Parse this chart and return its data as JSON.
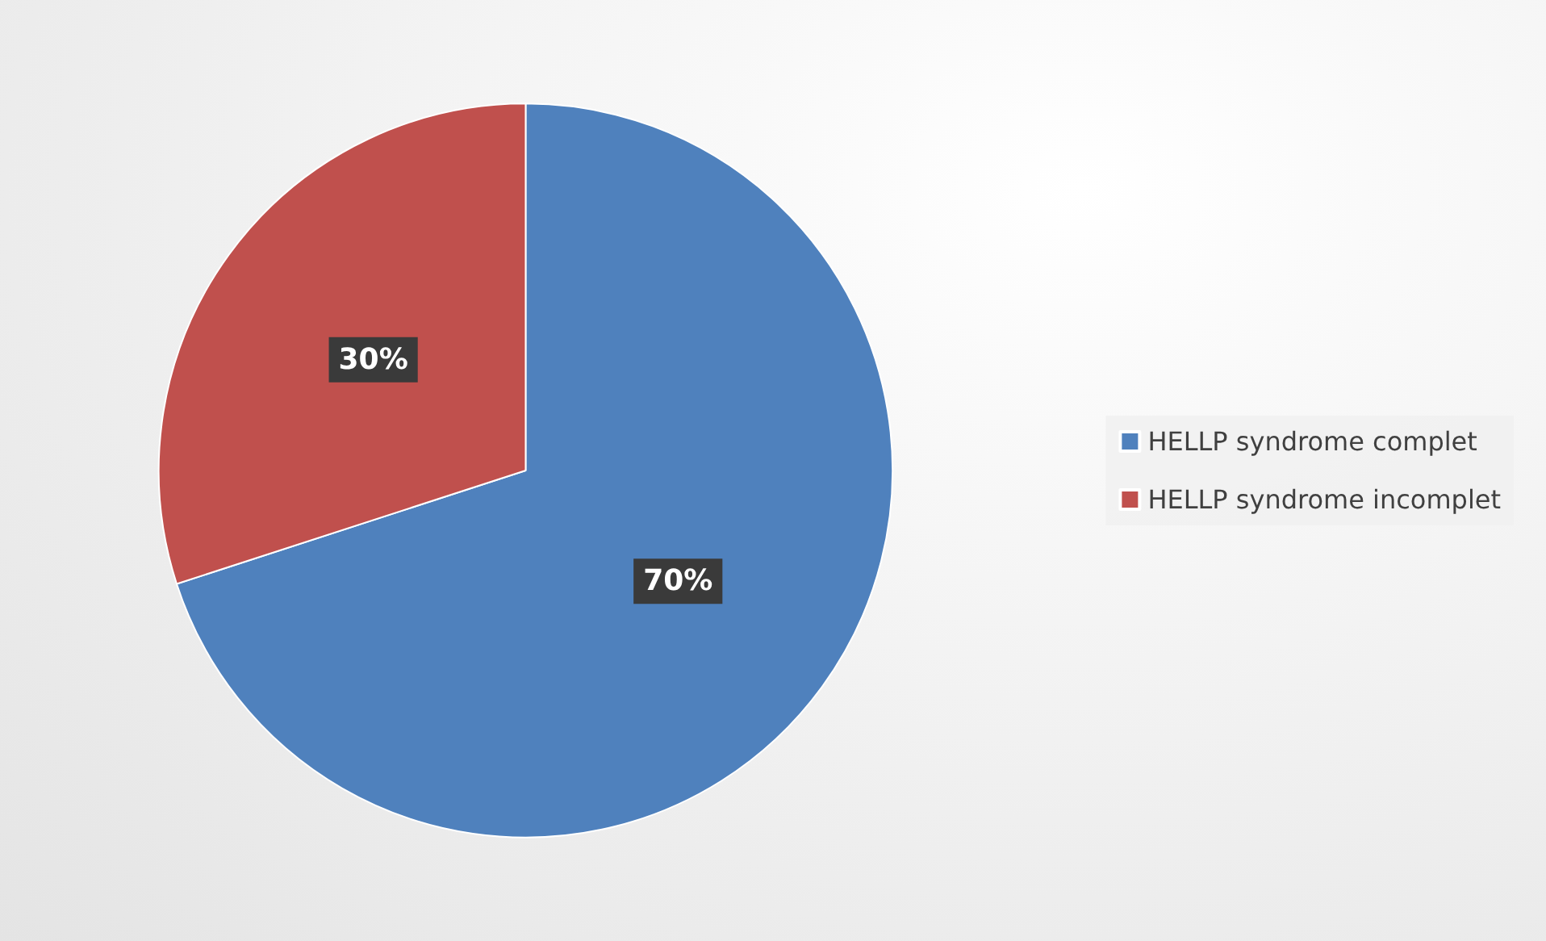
{
  "chart_data": {
    "type": "pie",
    "categories": [
      "HELLP syndrome complet",
      "HELLP syndrome incomplet"
    ],
    "values": [
      70,
      30
    ],
    "colors": [
      "#4f81bd",
      "#c0504d"
    ],
    "value_labels": [
      "70%",
      "30%"
    ],
    "legend": "right"
  }
}
